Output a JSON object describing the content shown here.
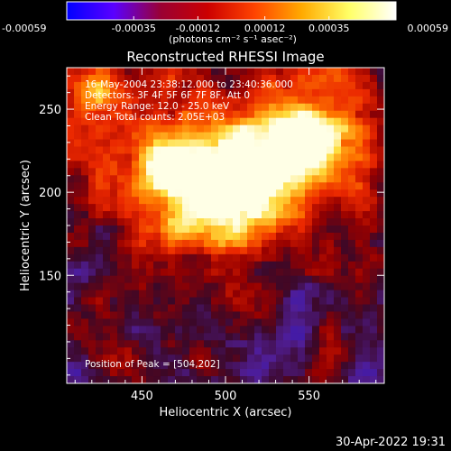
{
  "colorbar": {
    "tick_labels": [
      "-0.00059",
      "-0.00035",
      "-0.00012",
      "0.00012",
      "0.00035",
      "0.00059"
    ],
    "range": [
      -0.00059,
      0.00059
    ],
    "ticks": [
      -0.00059,
      -0.00035,
      -0.00012,
      0.00012,
      0.00035,
      0.00059
    ],
    "units_label": "(photons cm⁻² s⁻¹ asec⁻²)",
    "colors": [
      "#0000ff",
      "#5a00ff",
      "#9a0033",
      "#cc0000",
      "#ff4400",
      "#ffaa00",
      "#ffff66",
      "#ffffff"
    ]
  },
  "chart_data": {
    "type": "heatmap",
    "title": "Reconstructed RHESSI Image",
    "xlabel": "Heliocentric X (arcsec)",
    "ylabel": "Heliocentric Y (arcsec)",
    "xlim": [
      405,
      595
    ],
    "ylim": [
      85,
      275
    ],
    "x_ticks": [
      450,
      500,
      550
    ],
    "y_ticks": [
      150,
      200,
      250
    ],
    "annotations": [
      "16-May-2004 23:38:12.000 to 23:40:36.000",
      "Detectors: 3F 4F 5F 6F 7F 8F, Att 0",
      "Energy Range: 12.0 - 25.0 keV",
      "Clean    Total counts: 2.05E+03"
    ],
    "peak_label": "Position of Peak = [504,202]",
    "peak": [
      504,
      202
    ],
    "sources": [
      {
        "x": 504,
        "y": 202,
        "intensity": 1.0
      },
      {
        "x": 546,
        "y": 235,
        "intensity": 0.85
      },
      {
        "x": 465,
        "y": 215,
        "intensity": 0.6
      },
      {
        "x": 425,
        "y": 262,
        "intensity": 0.4
      }
    ]
  },
  "footer": {
    "timestamp": "30-Apr-2022 19:31"
  }
}
